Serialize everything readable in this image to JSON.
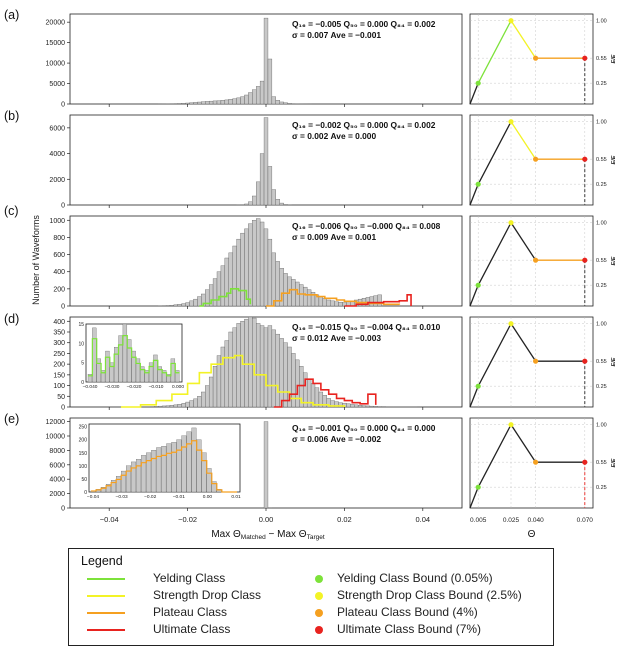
{
  "panel_labels": [
    "(a)",
    "(b)",
    "(c)",
    "(d)",
    "(e)"
  ],
  "ylabel": "Number of Waveforms",
  "xlabel_main": "Max Θ",
  "xlabel_sub1": "Matched",
  "xlabel_mid": " − Max Θ",
  "xlabel_sub2": "Target",
  "xtick_labels": [
    "−0.04",
    "−0.02",
    "0.00",
    "0.02",
    "0.04"
  ],
  "right_xlabel": "Θ",
  "right_xtick_labels": [
    "0.005",
    "0.025",
    "0.040",
    "0.070"
  ],
  "right_ytick_labels": [
    "0.25",
    "0.55",
    "1.00"
  ],
  "right_ylabel": "E/E",
  "panels": [
    {
      "ytick_labels": [
        "0",
        "5000",
        "10000",
        "15000",
        "20000"
      ],
      "stats_line1": "Q₁₆ = −0.005  Q₅₀ = 0.000  Q₈₄ = 0.002",
      "stats_line2": "σ = 0.007   Ave = −0.001"
    },
    {
      "ytick_labels": [
        "0",
        "2000",
        "4000",
        "6000"
      ],
      "stats_line1": "Q₁₆ = −0.002  Q₅₀ = 0.000  Q₈₄ = 0.002",
      "stats_line2": "σ = 0.002   Ave = 0.000"
    },
    {
      "ytick_labels": [
        "0",
        "200",
        "400",
        "600",
        "800",
        "1000"
      ],
      "stats_line1": "Q₁₆ = −0.006  Q₅₀ = −0.000  Q₈₄ = 0.008",
      "stats_line2": "σ = 0.009   Ave = 0.001"
    },
    {
      "ytick_labels": [
        "0",
        "50",
        "100",
        "150",
        "200",
        "250",
        "300",
        "350",
        "400"
      ],
      "stats_line1": "Q₁₆ = −0.015  Q₅₀ = −0.004  Q₈₄ = 0.010",
      "stats_line2": "σ = 0.012   Ave = −0.003"
    },
    {
      "ytick_labels": [
        "0",
        "2000",
        "4000",
        "6000",
        "8000",
        "10000",
        "12000"
      ],
      "stats_line1": "Q₁₆ = −0.001  Q₅₀ = 0.000  Q₈₄ = 0.000",
      "stats_line2": "σ = 0.006   Ave = −0.002"
    }
  ],
  "inset_d": {
    "ytick_labels": [
      "0",
      "5",
      "10",
      "15"
    ],
    "xtick_labels": [
      "−0.040",
      "−0.030",
      "−0.020",
      "−0.010",
      "0.000"
    ]
  },
  "inset_e": {
    "ytick_labels": [
      "0",
      "50",
      "100",
      "150",
      "200",
      "250"
    ],
    "xtick_labels": [
      "−0.04",
      "−0.03",
      "−0.02",
      "−0.01",
      "0.00",
      "0.01"
    ]
  },
  "legend": {
    "title": "Legend",
    "lines": [
      {
        "label": "Yelding Class",
        "color": "#7de23a"
      },
      {
        "label": "Strength Drop Class",
        "color": "#f3f326"
      },
      {
        "label": "Plateau Class",
        "color": "#f5a020"
      },
      {
        "label": "Ultimate Class",
        "color": "#e8231f"
      }
    ],
    "dots": [
      {
        "label": "Yelding Class Bound (0.05%)",
        "color": "#7de23a"
      },
      {
        "label": "Strength Drop Class Bound (2.5%)",
        "color": "#f3f326"
      },
      {
        "label": "Plateau Class Bound  (4%)",
        "color": "#f5a020"
      },
      {
        "label": "Ultimate Class Bound  (7%)",
        "color": "#e8231f"
      }
    ]
  },
  "chart_data": {
    "type": "bar",
    "x_range": [
      -0.05,
      0.05
    ],
    "bin_width": 0.001,
    "bin_centers_range": [
      -0.049,
      0.049
    ],
    "panels": [
      {
        "id": "a",
        "ylim": [
          0,
          22000
        ],
        "counts": [
          0,
          0,
          0,
          0,
          0,
          0,
          0,
          0,
          0,
          0,
          0,
          0,
          0,
          0,
          0,
          0,
          0,
          0,
          0,
          0,
          0,
          0,
          10,
          20,
          40,
          60,
          90,
          130,
          180,
          240,
          320,
          400,
          480,
          560,
          640,
          700,
          760,
          800,
          900,
          1000,
          1150,
          1300,
          1500,
          1800,
          2200,
          2800,
          3500,
          4300,
          5600,
          21000,
          11000,
          1800,
          900,
          500,
          300,
          150,
          80,
          40,
          20,
          10,
          5,
          0,
          0,
          0,
          0,
          0,
          0,
          0,
          0,
          0,
          0,
          0,
          0,
          0,
          0,
          0,
          0,
          0,
          0,
          0,
          0,
          0,
          0,
          0,
          0,
          0,
          0,
          0,
          0,
          0,
          0,
          0,
          0,
          0,
          0,
          0,
          0,
          0,
          0,
          0
        ]
      },
      {
        "id": "b",
        "ylim": [
          0,
          7000
        ],
        "counts": [
          0,
          0,
          0,
          0,
          0,
          0,
          0,
          0,
          0,
          0,
          0,
          0,
          0,
          0,
          0,
          0,
          0,
          0,
          0,
          0,
          0,
          0,
          0,
          0,
          0,
          0,
          0,
          0,
          0,
          0,
          0,
          0,
          0,
          0,
          0,
          0,
          0,
          0,
          0,
          0,
          0,
          0,
          5,
          20,
          80,
          250,
          700,
          1800,
          4000,
          6800,
          3000,
          1200,
          450,
          150,
          40,
          10,
          0,
          0,
          0,
          0,
          0,
          0,
          0,
          0,
          0,
          0,
          0,
          0,
          0,
          0,
          0,
          0,
          0,
          0,
          0,
          0,
          0,
          0,
          0,
          0,
          0,
          0,
          0,
          0,
          0,
          0,
          0,
          0,
          0,
          0,
          0,
          0,
          0,
          0,
          0,
          0,
          0,
          0,
          0,
          0
        ]
      },
      {
        "id": "c",
        "ylim": [
          0,
          1050
        ],
        "counts": [
          0,
          0,
          0,
          0,
          0,
          0,
          0,
          0,
          0,
          0,
          0,
          0,
          0,
          0,
          0,
          0,
          0,
          0,
          0,
          0,
          0,
          0,
          2,
          4,
          6,
          9,
          14,
          20,
          28,
          40,
          60,
          80,
          110,
          140,
          190,
          250,
          320,
          400,
          470,
          560,
          620,
          700,
          780,
          850,
          900,
          960,
          1000,
          1020,
          980,
          900,
          780,
          620,
          520,
          440,
          380,
          340,
          310,
          280,
          250,
          220,
          190,
          160,
          130,
          110,
          90,
          70,
          60,
          50,
          45,
          40,
          50,
          60,
          70,
          80,
          90,
          100,
          110,
          120,
          130,
          0,
          0,
          0,
          0,
          0,
          0,
          0,
          0,
          0,
          0,
          0,
          0,
          0,
          0,
          0,
          0,
          0,
          0,
          0
        ]
      },
      {
        "id": "d",
        "ylim": [
          0,
          420
        ],
        "counts": [
          0,
          0,
          0,
          0,
          0,
          0,
          0,
          0,
          0,
          0,
          0,
          0,
          0,
          0,
          0,
          0,
          0,
          0,
          0,
          0,
          2,
          3,
          4,
          5,
          6,
          8,
          10,
          13,
          17,
          23,
          30,
          38,
          50,
          70,
          100,
          140,
          190,
          240,
          280,
          310,
          350,
          370,
          390,
          400,
          410,
          430,
          415,
          390,
          380,
          370,
          380,
          360,
          340,
          320,
          300,
          280,
          250,
          220,
          190,
          160,
          130,
          110,
          90,
          70,
          55,
          40,
          30,
          25,
          20,
          18,
          15,
          12,
          10,
          8,
          6,
          5,
          4,
          3,
          2,
          2,
          1,
          1,
          1,
          1,
          1,
          1,
          1,
          1,
          0,
          0,
          0,
          0,
          0,
          0,
          0,
          0,
          0,
          0,
          0
        ]
      },
      {
        "id": "e",
        "ylim": [
          0,
          12500
        ],
        "counts": [
          0,
          0,
          0,
          0,
          0,
          0,
          0,
          0,
          0,
          0,
          0,
          0,
          0,
          0,
          0,
          0,
          0,
          0,
          0,
          0,
          0,
          0,
          0,
          0,
          0,
          0,
          0,
          0,
          0,
          0,
          0,
          0,
          0,
          0,
          0,
          0,
          0,
          0,
          0,
          0,
          0,
          0,
          0,
          0,
          0,
          0,
          0,
          0,
          0,
          12000,
          5,
          0,
          0,
          0,
          0,
          0,
          0,
          0,
          0,
          0,
          0,
          0,
          0,
          0,
          0,
          0,
          0,
          0,
          0,
          0,
          0,
          0,
          0,
          0,
          0,
          0,
          0,
          0,
          0,
          0,
          0,
          0,
          0,
          0,
          0,
          0,
          0,
          0,
          0,
          0,
          0,
          0,
          0,
          0,
          0,
          0,
          0,
          0,
          0
        ]
      }
    ],
    "class_curves": {
      "c": {
        "green": [
          [
            -0.017,
            0
          ],
          [
            -0.016,
            30
          ],
          [
            -0.014,
            70
          ],
          [
            -0.012,
            110
          ],
          [
            -0.01,
            150
          ],
          [
            -0.009,
            200
          ],
          [
            -0.007,
            180
          ],
          [
            -0.005,
            80
          ],
          [
            -0.004,
            20
          ]
        ],
        "orange": [
          [
            0.0,
            0
          ],
          [
            0.002,
            60
          ],
          [
            0.004,
            150
          ],
          [
            0.006,
            190
          ],
          [
            0.008,
            140
          ],
          [
            0.01,
            130
          ],
          [
            0.013,
            110
          ],
          [
            0.015,
            90
          ],
          [
            0.018,
            70
          ],
          [
            0.02,
            55
          ],
          [
            0.023,
            40
          ],
          [
            0.026,
            30
          ],
          [
            0.03,
            20
          ],
          [
            0.034,
            15
          ]
        ],
        "red": [
          [
            0.02,
            0
          ],
          [
            0.023,
            20
          ],
          [
            0.026,
            40
          ],
          [
            0.03,
            50
          ],
          [
            0.034,
            60
          ],
          [
            0.036,
            130
          ],
          [
            0.037,
            0
          ]
        ]
      },
      "d": {
        "yellow": [
          [
            -0.037,
            0
          ],
          [
            -0.032,
            10
          ],
          [
            -0.028,
            30
          ],
          [
            -0.024,
            60
          ],
          [
            -0.02,
            110
          ],
          [
            -0.017,
            160
          ],
          [
            -0.014,
            200
          ],
          [
            -0.011,
            230
          ],
          [
            -0.008,
            240
          ],
          [
            -0.006,
            200
          ],
          [
            -0.003,
            150
          ],
          [
            0.0,
            100
          ],
          [
            0.003,
            70
          ],
          [
            0.006,
            40
          ],
          [
            0.009,
            20
          ],
          [
            0.012,
            10
          ],
          [
            0.016,
            5
          ],
          [
            0.02,
            0
          ]
        ],
        "red": [
          [
            0.002,
            0
          ],
          [
            0.004,
            30
          ],
          [
            0.006,
            60
          ],
          [
            0.008,
            100
          ],
          [
            0.01,
            130
          ],
          [
            0.012,
            110
          ],
          [
            0.014,
            80
          ],
          [
            0.016,
            60
          ],
          [
            0.018,
            40
          ],
          [
            0.02,
            30
          ],
          [
            0.022,
            20
          ],
          [
            0.024,
            15
          ],
          [
            0.026,
            60
          ],
          [
            0.028,
            10
          ]
        ]
      }
    },
    "right_panels": [
      {
        "points": [
          [
            0.005,
            0.25
          ],
          [
            0.025,
            1.0
          ],
          [
            0.04,
            0.55
          ],
          [
            0.07,
            0.55
          ]
        ],
        "seg_colors": [
          "#7de23a",
          "#f3f326",
          "#f5a020"
        ],
        "dashed": true
      },
      {
        "points": [
          [
            0.005,
            0.25
          ],
          [
            0.025,
            1.0
          ],
          [
            0.04,
            0.55
          ],
          [
            0.07,
            0.55
          ]
        ],
        "seg_colors": [
          "#222222",
          "#f3f326",
          "#f5a020"
        ],
        "dashed": true
      },
      {
        "points": [
          [
            0.005,
            0.25
          ],
          [
            0.025,
            1.0
          ],
          [
            0.04,
            0.55
          ],
          [
            0.07,
            0.55
          ]
        ],
        "seg_colors": [
          "#222222",
          "#222222",
          "#f5a020"
        ],
        "dashed": true
      },
      {
        "points": [
          [
            0.005,
            0.25
          ],
          [
            0.025,
            1.0
          ],
          [
            0.04,
            0.55
          ],
          [
            0.07,
            0.55
          ]
        ],
        "seg_colors": [
          "#222222",
          "#222222",
          "#222222"
        ],
        "dashed": true
      },
      {
        "points": [
          [
            0.005,
            0.25
          ],
          [
            0.025,
            1.0
          ],
          [
            0.04,
            0.55
          ],
          [
            0.07,
            0.55
          ]
        ],
        "seg_colors": [
          "#222222",
          "#222222",
          "#222222"
        ],
        "dashed": true
      }
    ],
    "right_xlim": [
      0.0,
      0.075
    ],
    "right_ylim": [
      0.0,
      1.08
    ],
    "right_xticks": [
      0.005,
      0.025,
      0.04,
      0.07
    ],
    "right_yticks": [
      0.25,
      0.55,
      1.0
    ]
  }
}
